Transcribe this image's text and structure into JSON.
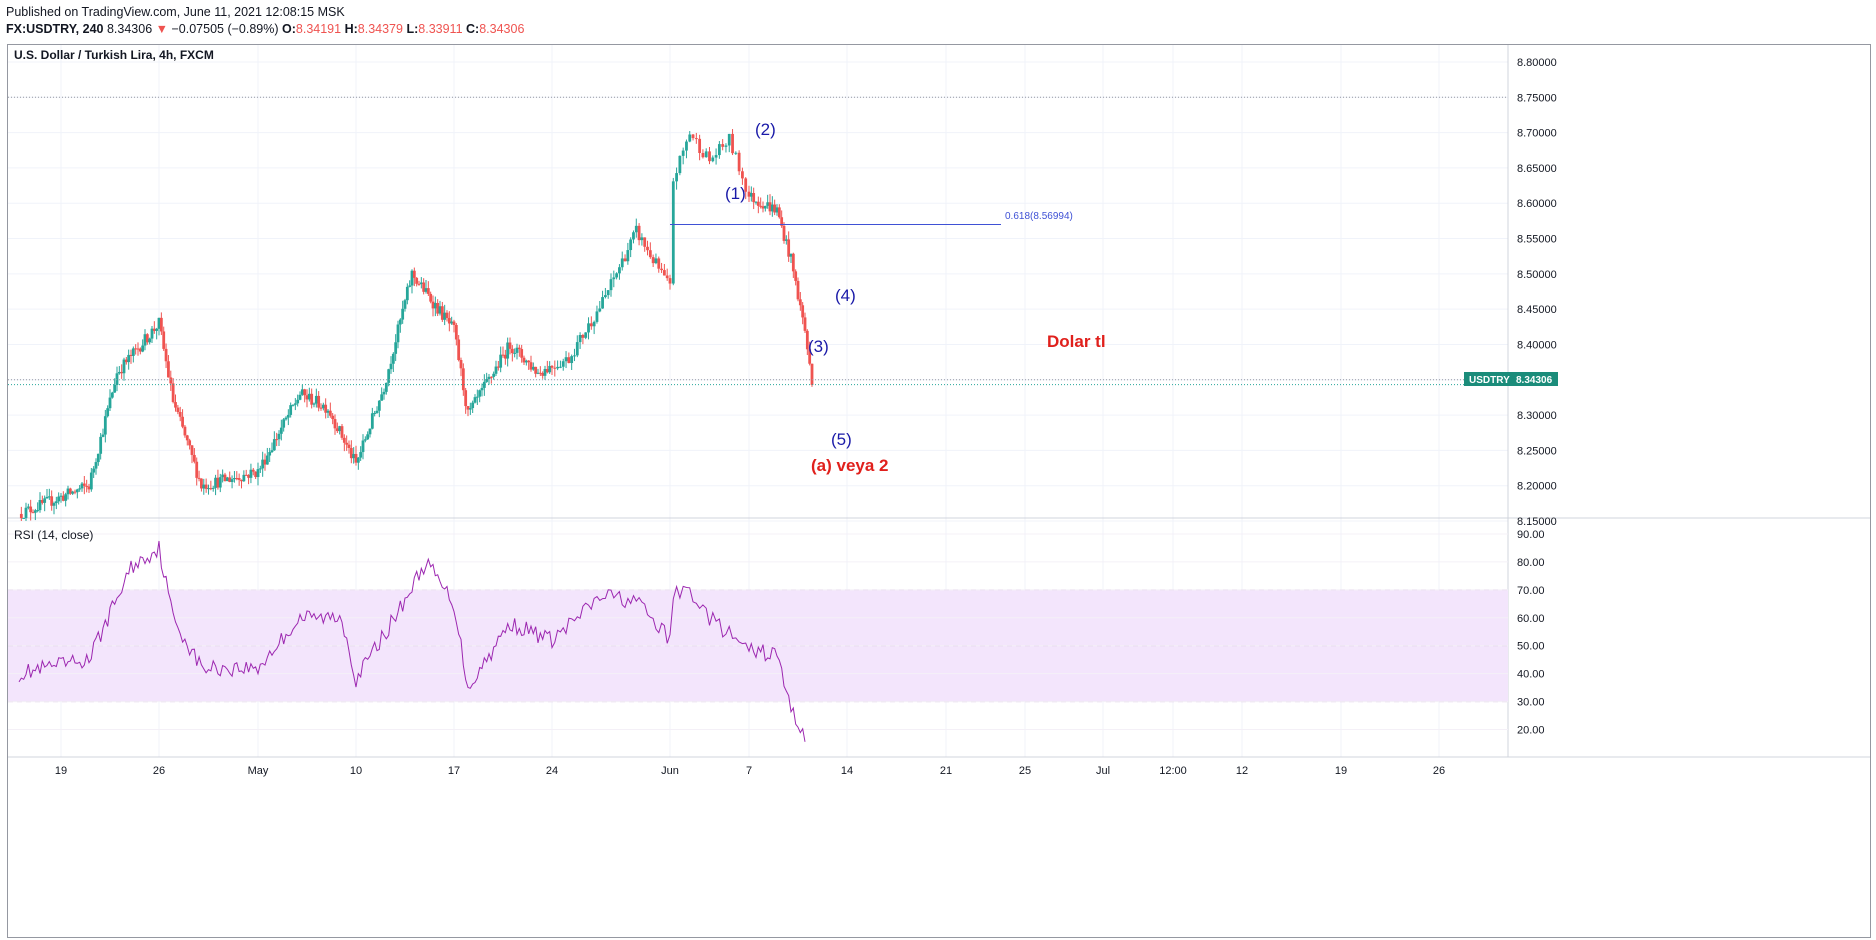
{
  "header": {
    "published": "Published on TradingView.com, June 11, 2021 12:08:15 MSK",
    "symbol": "FX:USDTRY, 240",
    "last": "8.34306",
    "change": "−0.07505 (−0.89%)",
    "open_label": "O:",
    "open": "8.34191",
    "high_label": "H:",
    "high": "8.34379",
    "low_label": "L:",
    "low": "8.33911",
    "close_label": "C:",
    "close": "8.34306",
    "down_arrow": "▼"
  },
  "price_pane": {
    "title": "U.S. Dollar / Turkish Lira, 4h, FXCM",
    "y_ticks": [
      "8.80000",
      "8.75000",
      "8.70000",
      "8.65000",
      "8.60000",
      "8.55000",
      "8.50000",
      "8.45000",
      "8.40000",
      "8.35000",
      "8.30000",
      "8.25000",
      "8.20000",
      "8.15000"
    ],
    "price_tag_symbol": "USDTRY",
    "price_tag_value": "8.34306",
    "fib_label": "0.618(8.56994)",
    "annotations": {
      "w1": "(1)",
      "w2": "(2)",
      "w3": "(3)",
      "w4": "(4)",
      "w5": "(5)",
      "note": "(a) veya 2",
      "side": "Dolar tl"
    }
  },
  "rsi_pane": {
    "title": "RSI (14, close)",
    "y_ticks": [
      "90.00",
      "80.00",
      "70.00",
      "60.00",
      "50.00",
      "40.00",
      "30.00",
      "20.00"
    ]
  },
  "x_axis": {
    "ticks": [
      "19",
      "26",
      "May",
      "10",
      "17",
      "24",
      "Jun",
      "7",
      "14",
      "21",
      "25",
      "Jul",
      "12:00",
      "12",
      "19",
      "26"
    ]
  },
  "colors": {
    "up": "#26a69a",
    "down": "#ef5350",
    "rsi_line": "#9c27b0",
    "rsi_band": "#f3e5fc",
    "wave_label": "#1a1aa8",
    "annotation_red": "#e0201c",
    "fib_line": "#3f51d5"
  },
  "chart_data": [
    {
      "type": "candlestick",
      "title": "U.S. Dollar / Turkish Lira, 4h, FXCM",
      "ylim": [
        8.15,
        8.8
      ],
      "fibonacci": {
        "level": 0.618,
        "price": 8.56994
      },
      "last_price": 8.34306,
      "waypoints": [
        {
          "date": "Apr 16",
          "price": 8.16
        },
        {
          "date": "Apr 21",
          "price": 8.2
        },
        {
          "date": "Apr 23",
          "price": 8.36
        },
        {
          "date": "Apr 26",
          "price": 8.43
        },
        {
          "date": "Apr 27",
          "price": 8.32
        },
        {
          "date": "Apr 29",
          "price": 8.2
        },
        {
          "date": "May 3",
          "price": 8.22
        },
        {
          "date": "May 6",
          "price": 8.33
        },
        {
          "date": "May 8",
          "price": 8.31
        },
        {
          "date": "May 10",
          "price": 8.23
        },
        {
          "date": "May 12",
          "price": 8.34
        },
        {
          "date": "May 14",
          "price": 8.5
        },
        {
          "date": "May 17",
          "price": 8.42
        },
        {
          "date": "May 18",
          "price": 8.3
        },
        {
          "date": "May 21",
          "price": 8.4
        },
        {
          "date": "May 23",
          "price": 8.36
        },
        {
          "date": "May 25",
          "price": 8.38
        },
        {
          "date": "May 27",
          "price": 8.46
        },
        {
          "date": "May 29",
          "price": 8.56
        },
        {
          "date": "May 31",
          "price": 8.48
        },
        {
          "date": "Jun 2",
          "price": 8.52
        },
        {
          "date": "Jun 3",
          "price": 8.62
        },
        {
          "date": "Jun 4",
          "price": 8.7
        },
        {
          "date": "Jun 5",
          "price": 8.66
        },
        {
          "date": "Jun 6",
          "price": 8.69
        },
        {
          "date": "Jun 7",
          "price": 8.61
        },
        {
          "date": "Jun 9",
          "price": 8.59
        },
        {
          "date": "Jun 10",
          "price": 8.52
        },
        {
          "date": "Jun 11",
          "price": 8.42
        },
        {
          "date": "Jun 11 12:00",
          "price": 8.34306
        }
      ]
    },
    {
      "type": "line",
      "title": "RSI (14, close)",
      "ylim": [
        15,
        90
      ],
      "bands": [
        30,
        50,
        70
      ],
      "x": [
        "Apr 16",
        "Apr 21",
        "Apr 24",
        "Apr 26",
        "Apr 27",
        "Apr 29",
        "May 3",
        "May 6",
        "May 9",
        "May 10",
        "May 13",
        "May 15",
        "May 17",
        "May 18",
        "May 21",
        "May 24",
        "May 27",
        "May 29",
        "May 31",
        "Jun 2",
        "Jun 4",
        "Jun 5",
        "Jun 7",
        "Jun 9",
        "Jun 10",
        "Jun 11"
      ],
      "series": [
        {
          "values": [
            40,
            45,
            78,
            85,
            60,
            42,
            42,
            60,
            60,
            38,
            62,
            80,
            65,
            35,
            58,
            52,
            68,
            66,
            52,
            66,
            70,
            60,
            48,
            47,
            27,
            18
          ]
        }
      ]
    }
  ]
}
